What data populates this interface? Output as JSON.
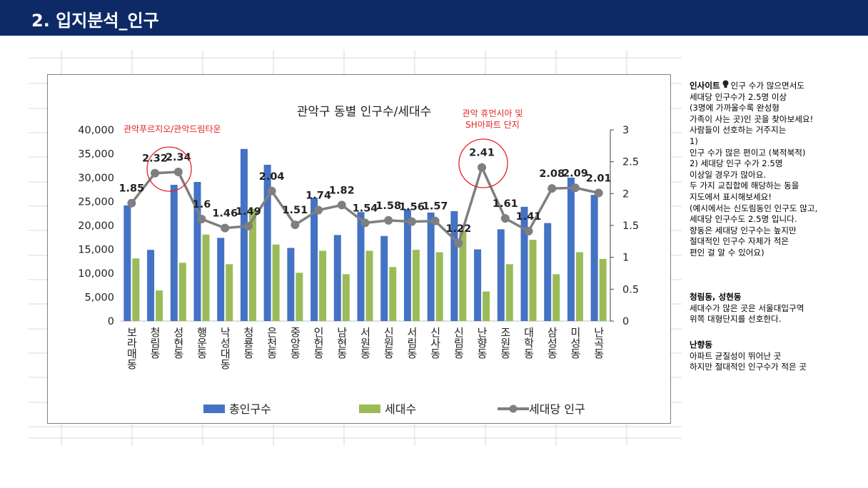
{
  "header": {
    "title": "2. 입지분석_인구"
  },
  "chart_data": {
    "type": "bar",
    "title": "관악구 동별 인구수/세대수",
    "categories": [
      "보라매동",
      "청림동",
      "성현동",
      "행운동",
      "낙성대동",
      "청룡동",
      "은천동",
      "중앙동",
      "인헌동",
      "남현동",
      "서원동",
      "신원동",
      "서림동",
      "신사동",
      "신림동",
      "난향동",
      "조원동",
      "대학동",
      "삼성동",
      "미성동",
      "난곡동"
    ],
    "series": [
      {
        "name": "총인구수",
        "kind": "bar",
        "axis": "left",
        "color": "#4472c4",
        "values": [
          24200,
          14900,
          28500,
          29100,
          17400,
          36000,
          32700,
          15300,
          25800,
          18000,
          22800,
          17800,
          23400,
          22700,
          23000,
          15000,
          19200,
          23900,
          20500,
          30000,
          26400
        ]
      },
      {
        "name": "세대수",
        "kind": "bar",
        "axis": "left",
        "color": "#9bbb59",
        "values": [
          13100,
          6400,
          12200,
          18100,
          11900,
          23500,
          16000,
          10100,
          14700,
          9800,
          14700,
          11300,
          14900,
          14400,
          18800,
          6200,
          11900,
          17000,
          9800,
          14400,
          13000
        ]
      },
      {
        "name": "세대당 인구",
        "kind": "line",
        "axis": "right",
        "color": "#7f7f7f",
        "values": [
          1.85,
          2.32,
          2.34,
          1.6,
          1.46,
          1.49,
          2.04,
          1.51,
          1.74,
          1.82,
          1.54,
          1.58,
          1.56,
          1.57,
          1.22,
          2.41,
          1.61,
          1.41,
          2.08,
          2.09,
          2.01
        ],
        "labels": [
          "1.85",
          "2.32",
          "2.34",
          "1.6",
          "1.46",
          "1.49",
          "2.04",
          "1.51",
          "1.74",
          "1.82",
          "1.54",
          "1.58",
          "1.56",
          "1.57",
          "1.22",
          "2.41",
          "1.61",
          "1.41",
          "2.08",
          "2.09",
          "2.01"
        ]
      }
    ],
    "ylim_left": [
      0,
      40000
    ],
    "yticks_left": [
      "0",
      "5,000",
      "10,000",
      "15,000",
      "20,000",
      "25,000",
      "30,000",
      "35,000",
      "40,000"
    ],
    "ylim_right": [
      0,
      3
    ],
    "yticks_right": [
      "0",
      "0.5",
      "1",
      "1.5",
      "2",
      "2.5",
      "3"
    ],
    "legend_position": "bottom",
    "annotations": [
      {
        "text": "관악푸르지오/관악드림타운",
        "color": "#e32222"
      },
      {
        "text": "관악 휴먼시아 및",
        "color": "#e32222"
      },
      {
        "text": "SH아파트 단지",
        "color": "#e32222"
      }
    ],
    "highlight_circles": [
      {
        "indices": [
          1,
          2
        ],
        "color": "#e32222"
      },
      {
        "indices": [
          15
        ],
        "color": "#e32222"
      }
    ]
  },
  "insight": {
    "heading": "인사이트",
    "lines": [
      "인구 수가 많으면서도",
      "세대당 인구수가 2.5명 이상",
      "(3명에 가까울수록 완성형",
      "가족이 사는 곳)인 곳을 찾아보세요!",
      "사람들이 선호하는 거주지는",
      "  1)",
      "인구 수가 많은 편이고 (북적북적)",
      "2) 세대당 인구 수가 2.5명",
      "이상일 경우가 많아요.",
      "두 가지 교집합에 해당하는 동을",
      "지도에서 표시해보세요!",
      "(예시에서는 신도림동인 인구도 많고,",
      "세대당 인구수도 2.5명 입니다.",
      "향동은 세대당 인구수는 높지만",
      "절대적인 인구수 자체가 적은",
      "편인 걸 알 수 있어요)"
    ]
  },
  "note1": {
    "heading": "청림동, 성현동",
    "lines": [
      "세대수가 많은 곳은 서울대입구역",
      "위쪽 대형단지를 선호한다."
    ]
  },
  "note2": {
    "heading": "난향동",
    "lines": [
      "아파트 균질성이 뛰어난 곳",
      "하지만 절대적인 인구수가 적은 곳"
    ]
  }
}
